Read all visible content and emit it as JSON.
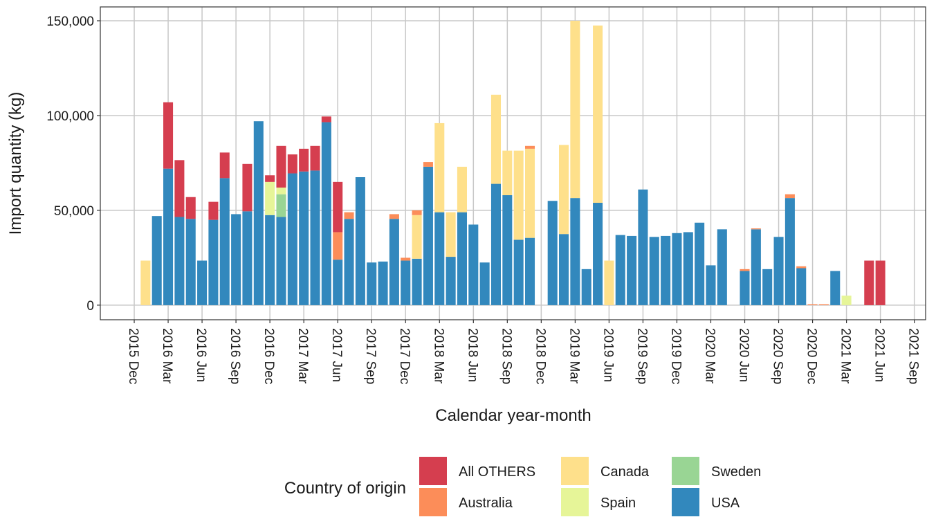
{
  "chart_data": {
    "type": "stacked_bar",
    "x_label": "Calendar year-month",
    "y_label": "Import quantity (kg)",
    "legend_title": "Country of origin",
    "legend_position": "bottom",
    "grid": true,
    "x": [
      "2016-01",
      "2016-02",
      "2016-03",
      "2016-04",
      "2016-05",
      "2016-06",
      "2016-07",
      "2016-08",
      "2016-09",
      "2016-10",
      "2016-11",
      "2016-12",
      "2017-01",
      "2017-02",
      "2017-03",
      "2017-04",
      "2017-05",
      "2017-06",
      "2017-07",
      "2017-08",
      "2017-09",
      "2017-10",
      "2017-11",
      "2017-12",
      "2018-01",
      "2018-02",
      "2018-03",
      "2018-04",
      "2018-05",
      "2018-06",
      "2018-07",
      "2018-08",
      "2018-09",
      "2018-10",
      "2018-11",
      "2018-12",
      "2019-01",
      "2019-02",
      "2019-03",
      "2019-04",
      "2019-05",
      "2019-06",
      "2019-07",
      "2019-08",
      "2019-09",
      "2019-10",
      "2019-11",
      "2019-12",
      "2020-01",
      "2020-02",
      "2020-03",
      "2020-04",
      "2020-05",
      "2020-06",
      "2020-07",
      "2020-08",
      "2020-09",
      "2020-10",
      "2020-11",
      "2020-12",
      "2021-01",
      "2021-02",
      "2021-03",
      "2021-04",
      "2021-05",
      "2021-06"
    ],
    "series": [
      {
        "name": "All OTHERS",
        "color": "#d53e4f",
        "values": [
          null,
          null,
          35000,
          30000,
          11500,
          null,
          9500,
          13500,
          null,
          25000,
          null,
          3500,
          22000,
          10000,
          12000,
          13000,
          3000,
          26500,
          null,
          null,
          null,
          null,
          null,
          null,
          null,
          null,
          null,
          null,
          null,
          null,
          null,
          null,
          null,
          null,
          null,
          null,
          null,
          null,
          null,
          null,
          null,
          null,
          null,
          null,
          null,
          null,
          null,
          null,
          null,
          null,
          null,
          null,
          null,
          null,
          null,
          null,
          null,
          null,
          null,
          null,
          null,
          null,
          null,
          null,
          23500,
          23500
        ]
      },
      {
        "name": "Australia",
        "color": "#fc8d59",
        "values": [
          null,
          null,
          null,
          null,
          null,
          null,
          null,
          null,
          null,
          null,
          null,
          null,
          null,
          null,
          null,
          null,
          null,
          14500,
          3500,
          null,
          null,
          null,
          2500,
          1500,
          2500,
          2500,
          null,
          null,
          null,
          null,
          null,
          null,
          null,
          null,
          1500,
          null,
          null,
          null,
          null,
          null,
          null,
          null,
          null,
          null,
          null,
          null,
          null,
          null,
          null,
          null,
          null,
          null,
          null,
          1000,
          500,
          null,
          null,
          2000,
          1000,
          500,
          500,
          null,
          null,
          null,
          null,
          null
        ]
      },
      {
        "name": "Canada",
        "color": "#fee08b",
        "values": [
          23500,
          null,
          null,
          null,
          null,
          null,
          null,
          null,
          null,
          null,
          null,
          null,
          null,
          null,
          null,
          null,
          null,
          null,
          null,
          null,
          null,
          null,
          null,
          null,
          23000,
          null,
          47000,
          23500,
          24000,
          null,
          null,
          47000,
          23500,
          47000,
          47000,
          null,
          null,
          47000,
          93500,
          null,
          93500,
          23500,
          null,
          null,
          null,
          null,
          null,
          null,
          null,
          null,
          null,
          null,
          null,
          null,
          null,
          null,
          null,
          null,
          null,
          null,
          null,
          null,
          null,
          null,
          null,
          null
        ]
      },
      {
        "name": "Spain",
        "color": "#e6f598",
        "values": [
          null,
          null,
          null,
          null,
          null,
          null,
          null,
          null,
          null,
          null,
          null,
          17500,
          3500,
          null,
          null,
          null,
          null,
          null,
          null,
          null,
          null,
          null,
          null,
          null,
          null,
          null,
          null,
          null,
          null,
          null,
          null,
          null,
          null,
          null,
          null,
          null,
          null,
          null,
          null,
          null,
          null,
          null,
          null,
          null,
          null,
          null,
          null,
          null,
          null,
          null,
          null,
          null,
          null,
          null,
          null,
          null,
          null,
          null,
          null,
          null,
          null,
          null,
          5000,
          null,
          null,
          null
        ]
      },
      {
        "name": "Sweden",
        "color": "#99d594",
        "values": [
          null,
          null,
          null,
          null,
          null,
          null,
          null,
          null,
          null,
          null,
          null,
          null,
          12000,
          null,
          null,
          null,
          null,
          null,
          null,
          null,
          null,
          null,
          null,
          null,
          null,
          null,
          null,
          null,
          null,
          null,
          null,
          null,
          null,
          null,
          null,
          null,
          null,
          null,
          null,
          null,
          null,
          null,
          null,
          null,
          null,
          null,
          null,
          null,
          null,
          null,
          null,
          null,
          null,
          null,
          null,
          null,
          null,
          null,
          null,
          null,
          null,
          null,
          null,
          null,
          null,
          null
        ]
      },
      {
        "name": "USA",
        "color": "#3288bd",
        "values": [
          null,
          47000,
          72000,
          46500,
          45500,
          23500,
          45000,
          67000,
          48000,
          49500,
          97000,
          47500,
          46500,
          69500,
          70500,
          71000,
          96500,
          24000,
          45500,
          67500,
          22500,
          23000,
          45500,
          23500,
          24500,
          73000,
          49000,
          25500,
          49000,
          42500,
          22500,
          64000,
          58000,
          34500,
          35500,
          null,
          55000,
          37500,
          56500,
          19000,
          54000,
          null,
          37000,
          36500,
          61000,
          36000,
          36500,
          38000,
          38500,
          43500,
          21000,
          40000,
          null,
          18000,
          40000,
          19000,
          36000,
          56500,
          19500,
          null,
          null,
          18000,
          null,
          null,
          null,
          null
        ]
      }
    ],
    "xlim": [
      "2015-09",
      "2021-10"
    ],
    "xticks": [
      {
        "value": "2015-12",
        "label": "2015 Dec"
      },
      {
        "value": "2016-03",
        "label": "2016 Mar"
      },
      {
        "value": "2016-06",
        "label": "2016 Jun"
      },
      {
        "value": "2016-09",
        "label": "2016 Sep"
      },
      {
        "value": "2016-12",
        "label": "2016 Dec"
      },
      {
        "value": "2017-03",
        "label": "2017 Mar"
      },
      {
        "value": "2017-06",
        "label": "2017 Jun"
      },
      {
        "value": "2017-09",
        "label": "2017 Sep"
      },
      {
        "value": "2017-12",
        "label": "2017 Dec"
      },
      {
        "value": "2018-03",
        "label": "2018 Mar"
      },
      {
        "value": "2018-06",
        "label": "2018 Jun"
      },
      {
        "value": "2018-09",
        "label": "2018 Sep"
      },
      {
        "value": "2018-12",
        "label": "2018 Dec"
      },
      {
        "value": "2019-03",
        "label": "2019 Mar"
      },
      {
        "value": "2019-06",
        "label": "2019 Jun"
      },
      {
        "value": "2019-09",
        "label": "2019 Sep"
      },
      {
        "value": "2019-12",
        "label": "2019 Dec"
      },
      {
        "value": "2020-03",
        "label": "2020 Mar"
      },
      {
        "value": "2020-06",
        "label": "2020 Jun"
      },
      {
        "value": "2020-09",
        "label": "2020 Sep"
      },
      {
        "value": "2020-12",
        "label": "2020 Dec"
      },
      {
        "value": "2021-03",
        "label": "2021 Mar"
      },
      {
        "value": "2021-06",
        "label": "2021 Jun"
      },
      {
        "value": "2021-09",
        "label": "2021 Sep"
      }
    ],
    "ylim": [
      -7700,
      157300
    ],
    "yticks": [
      0,
      {
        "value": 50000,
        "label": "50,000"
      },
      {
        "value": 100000,
        "label": "100,000"
      },
      {
        "value": 150000,
        "label": "150,000"
      }
    ]
  }
}
